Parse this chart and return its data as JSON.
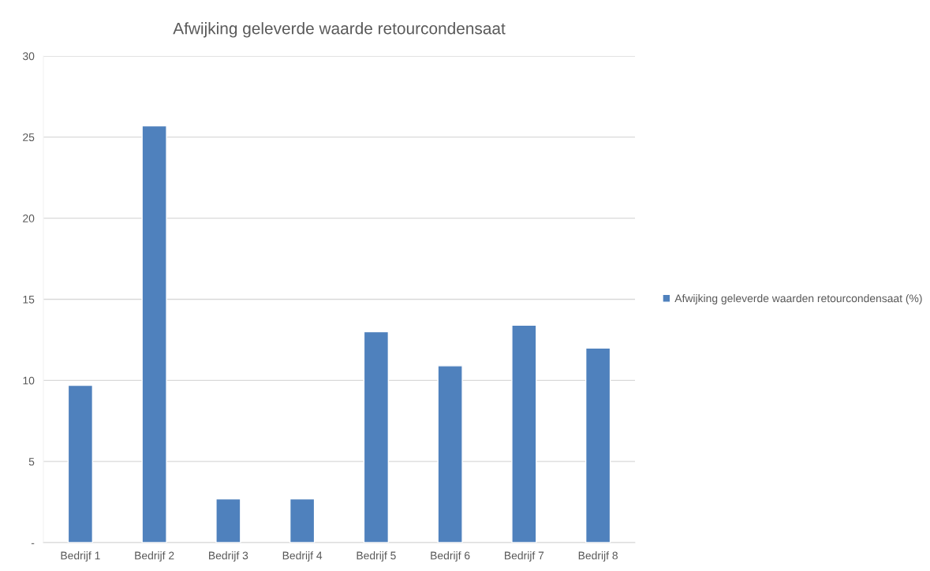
{
  "chart_data": {
    "type": "bar",
    "title": "Afwijking geleverde waarde retourcondensaat",
    "categories": [
      "Bedrijf 1",
      "Bedrijf 2",
      "Bedrijf 3",
      "Bedrijf 4",
      "Bedrijf 5",
      "Bedrijf 6",
      "Bedrijf 7",
      "Bedrijf 8"
    ],
    "series": [
      {
        "name": "Afwijking geleverde waarden retourcondensaat (%)",
        "color": "#4f81bd",
        "values": [
          9.7,
          25.7,
          2.7,
          2.7,
          13.0,
          10.9,
          13.4,
          12.0
        ]
      }
    ],
    "ylim": [
      0,
      30
    ],
    "yticks": [
      {
        "value": 0,
        "label": "-"
      },
      5,
      10,
      15,
      20,
      25,
      30
    ],
    "grid": "y",
    "legend": "right"
  }
}
